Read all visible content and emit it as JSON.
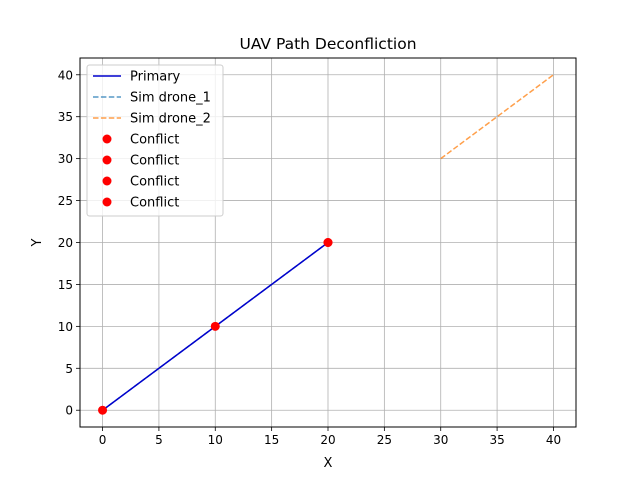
{
  "chart_data": {
    "type": "line",
    "title": "UAV Path Deconfliction",
    "xlabel": "X",
    "ylabel": "Y",
    "xlim": [
      -2,
      42
    ],
    "ylim": [
      -2,
      42
    ],
    "xticks": [
      0,
      5,
      10,
      15,
      20,
      25,
      30,
      35,
      40
    ],
    "yticks": [
      0,
      5,
      10,
      15,
      20,
      25,
      30,
      35,
      40
    ],
    "grid": true,
    "legend_position": "upper-left",
    "series": [
      {
        "name": "Primary",
        "kind": "line",
        "style": "solid",
        "color": "#0000cc",
        "x": [
          0,
          10,
          20
        ],
        "y": [
          0,
          10,
          20
        ]
      },
      {
        "name": "Sim drone_1",
        "kind": "line",
        "style": "dashed",
        "color": "#1f77b4",
        "x": [
          0,
          10,
          20
        ],
        "y": [
          0,
          10,
          20
        ]
      },
      {
        "name": "Sim drone_2",
        "kind": "line",
        "style": "dashed",
        "color": "#ff7f0e",
        "x": [
          30,
          40
        ],
        "y": [
          30,
          40
        ]
      }
    ],
    "conflicts": [
      {
        "name": "Conflict",
        "x": 0,
        "y": 0
      },
      {
        "name": "Conflict",
        "x": 10,
        "y": 10
      },
      {
        "name": "Conflict",
        "x": 20,
        "y": 20
      },
      {
        "name": "Conflict",
        "x": 20,
        "y": 20
      }
    ],
    "conflict_color": "#ff0000"
  }
}
